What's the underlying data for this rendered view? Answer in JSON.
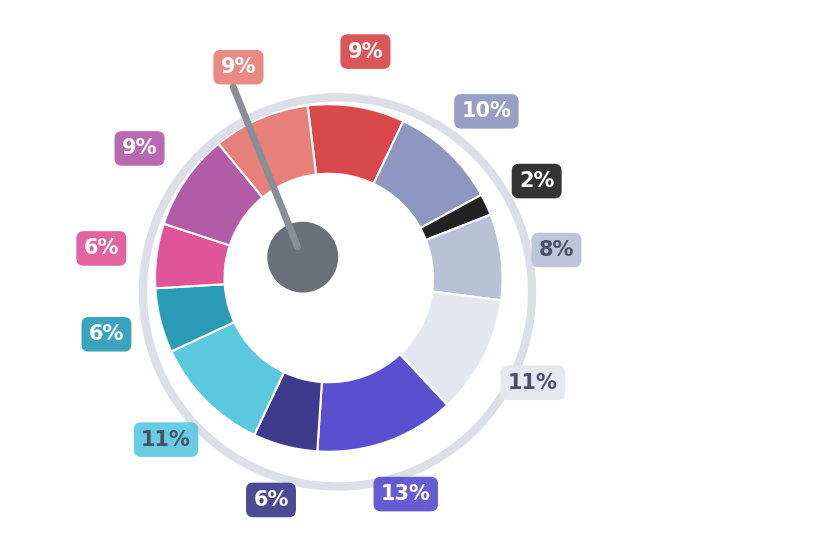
{
  "chart_data": {
    "type": "donut",
    "values": [
      9,
      10,
      2,
      8,
      11,
      13,
      6,
      11,
      6,
      6,
      9,
      9
    ],
    "value_labels": [
      "9%",
      "10%",
      "2%",
      "8%",
      "11%",
      "13%",
      "6%",
      "11%",
      "6%",
      "6%",
      "9%",
      "9%"
    ],
    "colors": [
      "#d9484b",
      "#8e97c0",
      "#222222",
      "#b8c2d6",
      "#e4e7ef",
      "#5a4fcf",
      "#3e3a8c",
      "#5bc8e0",
      "#2a9bb5",
      "#e0559a",
      "#b25ca8",
      "#e8807a"
    ],
    "data_labels": true
  }
}
